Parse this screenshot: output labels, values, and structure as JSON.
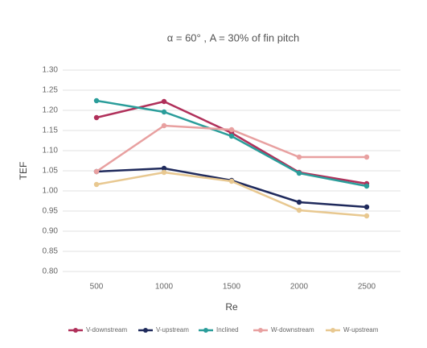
{
  "chart_data": {
    "type": "line",
    "title": "α = 60° , A = 30% of fin pitch",
    "x_label": "Re",
    "y_label": "TEF",
    "categories": [
      "500",
      "1000",
      "1500",
      "2000",
      "2500"
    ],
    "series": [
      {
        "name": "V-downstream",
        "color": "#b0305a",
        "values": [
          1.182,
          1.222,
          1.144,
          1.046,
          1.018
        ]
      },
      {
        "name": "V-upstream",
        "color": "#1f2a5c",
        "values": [
          1.048,
          1.056,
          1.026,
          0.972,
          0.96
        ]
      },
      {
        "name": "Inclined",
        "color": "#2a9d9a",
        "values": [
          1.224,
          1.196,
          1.136,
          1.044,
          1.012
        ]
      },
      {
        "name": "W-downstream",
        "color": "#e8a0a0",
        "values": [
          1.048,
          1.162,
          1.152,
          1.084,
          1.084
        ]
      },
      {
        "name": "W-upstream",
        "color": "#e8c890",
        "values": [
          1.016,
          1.046,
          1.024,
          0.952,
          0.938
        ]
      }
    ],
    "ylim": [
      0.8,
      1.3
    ],
    "yticks": [
      {
        "value": 0.8,
        "label": "0.80"
      },
      0.85,
      {
        "value": 0.9,
        "label": "0.90"
      },
      0.95,
      {
        "value": 1.0,
        "label": "1.00"
      },
      1.05,
      {
        "value": 1.1,
        "label": "1.10"
      },
      1.15,
      {
        "value": 1.2,
        "label": "1.20"
      },
      1.25,
      {
        "value": 1.3,
        "label": "1.30"
      }
    ],
    "grid": true
  }
}
